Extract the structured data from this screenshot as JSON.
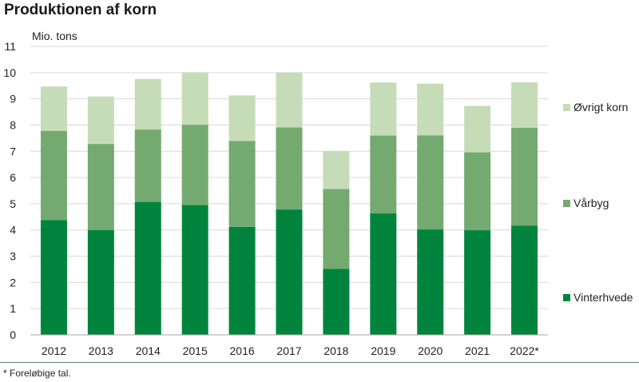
{
  "chart_data": {
    "type": "bar",
    "stacked": true,
    "title": "Produktionen af korn",
    "ylabel": "Mio. tons",
    "xlabel": "",
    "ylim": [
      0,
      11
    ],
    "yticks": [
      "0",
      "1",
      "2",
      "3",
      "4",
      "5",
      "6",
      "7",
      "8",
      "9",
      "10",
      "11"
    ],
    "grid": true,
    "legend_position": "right",
    "categories": [
      "2012",
      "2013",
      "2014",
      "2015",
      "2016",
      "2017",
      "2018",
      "2019",
      "2020",
      "2021",
      "2022*"
    ],
    "series": [
      {
        "name": "Vinterhvede",
        "color": "#00843d",
        "values": [
          4.38,
          4.0,
          5.07,
          4.95,
          4.12,
          4.78,
          2.52,
          4.63,
          4.02,
          3.99,
          4.16
        ]
      },
      {
        "name": "Vårbyg",
        "color": "#74aa70",
        "values": [
          3.4,
          3.28,
          2.76,
          3.06,
          3.27,
          3.13,
          3.04,
          2.97,
          3.59,
          2.97,
          3.74
        ]
      },
      {
        "name": "Øvrigt korn",
        "color": "#c6dcb8",
        "values": [
          1.69,
          1.81,
          1.93,
          2.0,
          1.74,
          2.09,
          1.44,
          2.02,
          1.97,
          1.77,
          1.73
        ]
      }
    ],
    "footnote": "* Foreløbige tal."
  }
}
